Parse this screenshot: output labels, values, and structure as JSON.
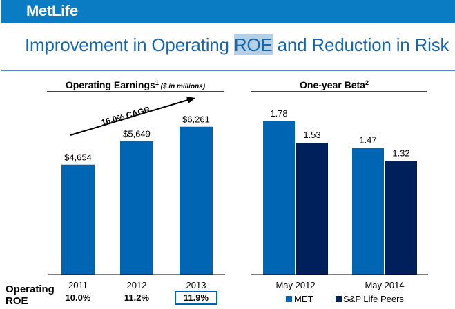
{
  "header": {
    "logo": "MetLife"
  },
  "slide": {
    "title_pre": "Improvement in Operating ",
    "title_highlight": "ROE",
    "title_post": " and Reduction in Risk"
  },
  "colors": {
    "met": "#0066b3",
    "peers": "#00205b",
    "header": "#0a7cc4",
    "title": "#1466ae"
  },
  "chart_data": [
    {
      "type": "bar",
      "title": "Operating Earnings",
      "title_superscript": "1",
      "subtitle": "($ in millions)",
      "categories": [
        "2011",
        "2012",
        "2013"
      ],
      "values": [
        4654,
        5649,
        6261
      ],
      "data_labels": [
        "$4,654",
        "$5,649",
        "$6,261"
      ],
      "annotation": "16.0% CAGR",
      "ylim": [
        0,
        7100
      ],
      "xlabel": "",
      "ylabel": "",
      "grid": false,
      "roe": {
        "label_line1": "Operating",
        "label_line2": "ROE",
        "values": [
          "10.0%",
          "11.2%",
          "11.9%"
        ],
        "highlighted": "11.9%"
      }
    },
    {
      "type": "bar",
      "title": "One-year Beta",
      "title_superscript": "2",
      "categories": [
        "May 2012",
        "May 2014"
      ],
      "series": [
        {
          "name": "MET",
          "values": [
            1.78,
            1.47
          ]
        },
        {
          "name": "S&P Life Peers",
          "values": [
            1.53,
            1.32
          ]
        }
      ],
      "data_labels": [
        [
          "1.78",
          "1.47"
        ],
        [
          "1.53",
          "1.32"
        ]
      ],
      "ylim": [
        0,
        1.95
      ],
      "grid": false,
      "legend": "bottom"
    }
  ]
}
